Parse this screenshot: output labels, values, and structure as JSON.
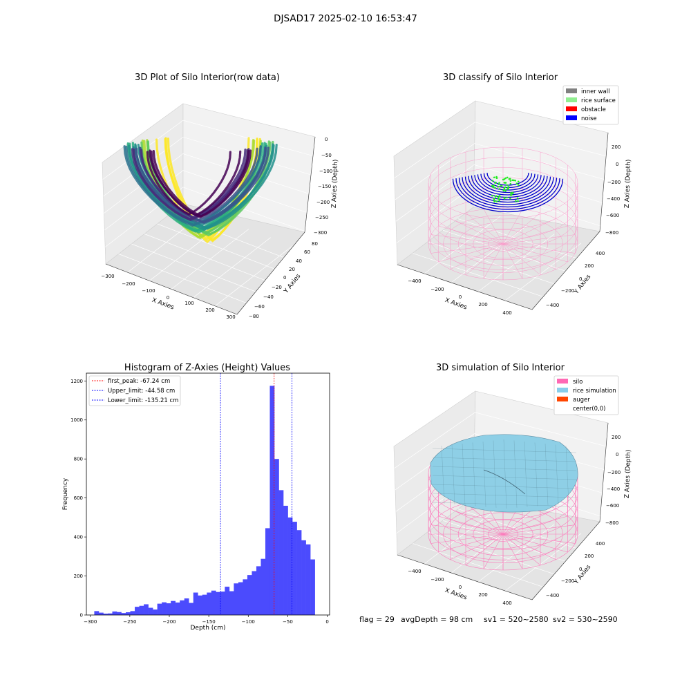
{
  "figure": {
    "suptitle": "DJSAD17 2025-02-10 16:53:47",
    "footer": {
      "flag": "flag = 29",
      "avg_depth": "avgDepth = 98 cm",
      "sv1": "sv1 = 520~2580",
      "sv2": "sv2 = 530~2590"
    }
  },
  "panels": {
    "raw3d": {
      "title": "3D Plot of Silo Interior(row data)",
      "xlabel": "X Axies",
      "ylabel": "Y Axies",
      "zlabel": "Z Axies (Depth)",
      "xticks": [
        "−300",
        "−200",
        "−100",
        "0",
        "100",
        "200",
        "300"
      ],
      "yticks": [
        "−80",
        "−60",
        "−40",
        "−20",
        "0",
        "20",
        "40",
        "60",
        "80"
      ],
      "zticks": [
        "0",
        "−50",
        "−100",
        "−150",
        "−200",
        "−250",
        "−300"
      ]
    },
    "classify3d": {
      "title": "3D classify of Silo Interior",
      "xlabel": "X Axies",
      "ylabel": "Y Axies",
      "zlabel": "Z Axies (Depth)",
      "xticks": [
        "−400",
        "−200",
        "0",
        "200",
        "400"
      ],
      "yticks": [
        "−400",
        "−200",
        "0",
        "200",
        "400"
      ],
      "zticks": [
        "200",
        "0",
        "−200",
        "−400",
        "−600",
        "−800"
      ],
      "legend": [
        {
          "label": "inner wall",
          "color": "#808080"
        },
        {
          "label": "rice surface",
          "color": "#90ee90"
        },
        {
          "label": "obstacle",
          "color": "#ff0000"
        },
        {
          "label": "noise",
          "color": "#0000ff"
        }
      ]
    },
    "simulation3d": {
      "title": "3D simulation of Silo Interior",
      "xlabel": "X Axies",
      "ylabel": "Y Axies",
      "zlabel": "Z Axies (Depth)",
      "xticks": [
        "−400",
        "−200",
        "0",
        "200",
        "400"
      ],
      "yticks": [
        "−400",
        "−200",
        "0",
        "200",
        "400"
      ],
      "zticks": [
        "200",
        "0",
        "−200",
        "−400",
        "−600",
        "−800"
      ],
      "legend": [
        {
          "label": "silo",
          "color": "#ff69b4"
        },
        {
          "label": "rice simulation",
          "color": "#87ceeb"
        },
        {
          "label": "auger",
          "color": "#ff4500"
        },
        {
          "label": "center(0,0)",
          "color": ""
        }
      ]
    }
  },
  "chart_data": [
    {
      "type": "bar",
      "title": "Histogram of Z-Axies (Height) Values",
      "xlabel": "Depth (cm)",
      "ylabel": "Frequency",
      "xlim": [
        -305,
        3
      ],
      "ylim": [
        0,
        1240
      ],
      "xticks": [
        -300,
        -250,
        -200,
        -150,
        -100,
        -50,
        0
      ],
      "yticks": [
        0,
        200,
        400,
        600,
        800,
        1000,
        1200
      ],
      "bar_color": "#4b4bfd",
      "bin_start": -295,
      "bin_width": 5.7,
      "values": [
        20,
        12,
        7,
        8,
        18,
        15,
        10,
        14,
        20,
        42,
        47,
        55,
        37,
        28,
        58,
        65,
        60,
        72,
        64,
        75,
        85,
        62,
        115,
        100,
        104,
        115,
        125,
        118,
        120,
        145,
        122,
        162,
        168,
        183,
        205,
        225,
        250,
        288,
        445,
        1175,
        800,
        640,
        560,
        500,
        478,
        435,
        383,
        362,
        285
      ],
      "vlines": [
        {
          "label": "first_peak: -67.24 cm",
          "x": -67.24,
          "color": "#ff0000"
        },
        {
          "label": "Upper_limit: -44.58 cm",
          "x": -44.58,
          "color": "#0000ff"
        },
        {
          "label": "Lower_limit: -135.21 cm",
          "x": -135.21,
          "color": "#0000ff"
        }
      ],
      "legend_position": "top-left"
    }
  ]
}
